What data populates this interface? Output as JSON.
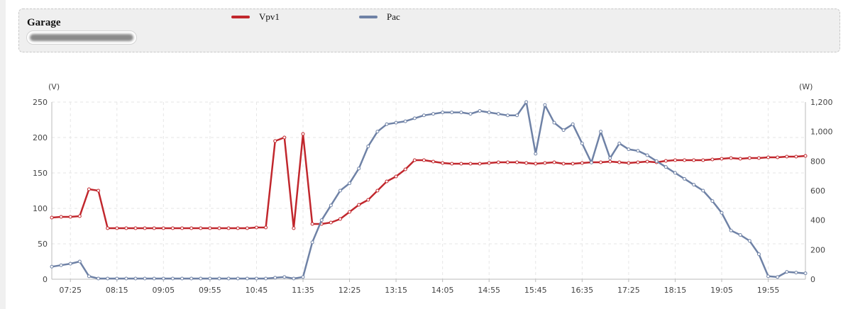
{
  "header": {
    "title": "Garage"
  },
  "chart_data": {
    "type": "line",
    "x": [
      "07:05",
      "07:15",
      "07:25",
      "07:35",
      "07:45",
      "07:55",
      "08:05",
      "08:15",
      "08:25",
      "08:35",
      "08:45",
      "08:55",
      "09:05",
      "09:15",
      "09:25",
      "09:35",
      "09:45",
      "09:55",
      "10:05",
      "10:15",
      "10:25",
      "10:35",
      "10:45",
      "10:55",
      "11:05",
      "11:15",
      "11:25",
      "11:35",
      "11:45",
      "11:55",
      "12:05",
      "12:15",
      "12:25",
      "12:35",
      "12:45",
      "12:55",
      "13:05",
      "13:15",
      "13:25",
      "13:35",
      "13:45",
      "13:55",
      "14:05",
      "14:15",
      "14:25",
      "14:35",
      "14:45",
      "14:55",
      "15:05",
      "15:15",
      "15:25",
      "15:35",
      "15:45",
      "15:55",
      "16:05",
      "16:15",
      "16:25",
      "16:35",
      "16:45",
      "16:55",
      "17:05",
      "17:15",
      "17:25",
      "17:35",
      "17:45",
      "17:55",
      "18:05",
      "18:15",
      "18:25",
      "18:35",
      "18:45",
      "18:55",
      "19:05",
      "19:15",
      "19:25",
      "19:35",
      "19:45",
      "19:55",
      "20:05",
      "20:15",
      "20:25",
      "20:35"
    ],
    "xticks": [
      "07:25",
      "08:15",
      "09:05",
      "09:55",
      "10:45",
      "11:35",
      "12:25",
      "13:15",
      "14:05",
      "14:55",
      "15:45",
      "16:35",
      "17:25",
      "18:15",
      "19:05",
      "19:55"
    ],
    "series": [
      {
        "name": "Vpv1",
        "axis": "left",
        "color": "#c1272d",
        "values": [
          87,
          88,
          88,
          89,
          127,
          125,
          72,
          72,
          72,
          72,
          72,
          72,
          72,
          72,
          72,
          72,
          72,
          72,
          72,
          72,
          72,
          72,
          73,
          73,
          195,
          200,
          72,
          205,
          78,
          78,
          80,
          85,
          95,
          105,
          112,
          125,
          138,
          145,
          155,
          168,
          168,
          166,
          164,
          163,
          163,
          163,
          163,
          164,
          165,
          165,
          165,
          164,
          163,
          164,
          165,
          163,
          163,
          164,
          165,
          165,
          166,
          165,
          164,
          165,
          166,
          165,
          167,
          168,
          168,
          168,
          168,
          169,
          170,
          171,
          170,
          171,
          171,
          172,
          172,
          173,
          173,
          174
        ]
      },
      {
        "name": "Pac",
        "axis": "right",
        "color": "#6f82a6",
        "values": [
          85,
          95,
          105,
          120,
          20,
          5,
          5,
          5,
          5,
          5,
          5,
          5,
          5,
          5,
          5,
          5,
          5,
          5,
          5,
          5,
          5,
          5,
          5,
          5,
          10,
          15,
          5,
          15,
          250,
          400,
          500,
          600,
          650,
          750,
          900,
          1000,
          1050,
          1060,
          1070,
          1090,
          1110,
          1120,
          1130,
          1130,
          1130,
          1120,
          1140,
          1130,
          1120,
          1110,
          1110,
          1200,
          850,
          1180,
          1060,
          1010,
          1050,
          920,
          790,
          1000,
          820,
          920,
          880,
          870,
          840,
          800,
          760,
          720,
          680,
          640,
          600,
          530,
          450,
          330,
          300,
          260,
          170,
          20,
          15,
          50,
          45,
          40
        ]
      }
    ],
    "left_axis": {
      "unit": "(V)",
      "ylim": [
        0,
        250
      ],
      "ticks": [
        "0",
        "50",
        "100",
        "150",
        "200",
        "250"
      ]
    },
    "right_axis": {
      "unit": "(W)",
      "ylim": [
        0,
        1200
      ],
      "ticks": [
        "0",
        "200",
        "400",
        "600",
        "800",
        "1,000",
        "1,200"
      ]
    },
    "grid": true,
    "legend": "top"
  }
}
